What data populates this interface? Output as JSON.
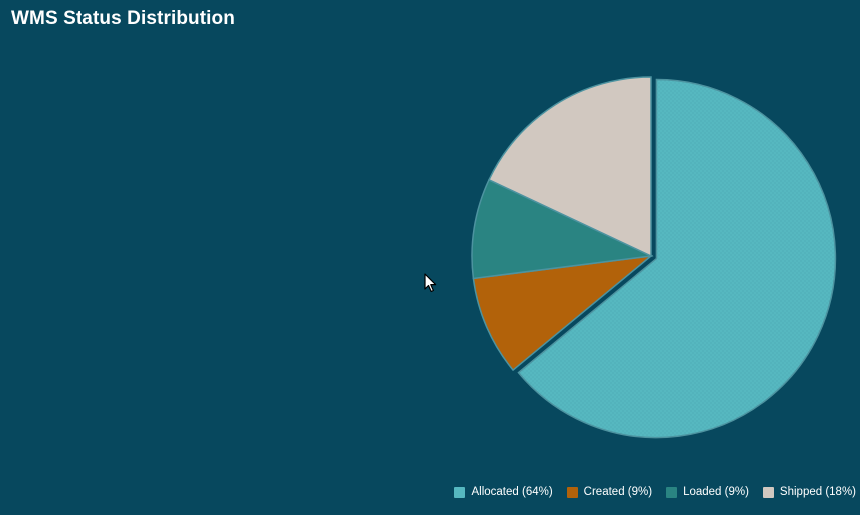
{
  "page": {
    "title": "WMS Status Distribution"
  },
  "chart_data": {
    "type": "pie",
    "title": "WMS Status Distribution",
    "start_angle_deg": 0,
    "direction": "clockwise",
    "exploded_slice": "Allocated",
    "categories": [
      "Allocated",
      "Created",
      "Loaded",
      "Shipped"
    ],
    "values": [
      64,
      9,
      9,
      18
    ],
    "colors": [
      "#56b8c0",
      "#b2620a",
      "#2a8482",
      "#d1c8c0"
    ],
    "legend_labels": [
      "Allocated (64%)",
      "Created (9%)",
      "Loaded (9%)",
      "Shipped (18%)"
    ],
    "legend_position": "bottom-right"
  }
}
